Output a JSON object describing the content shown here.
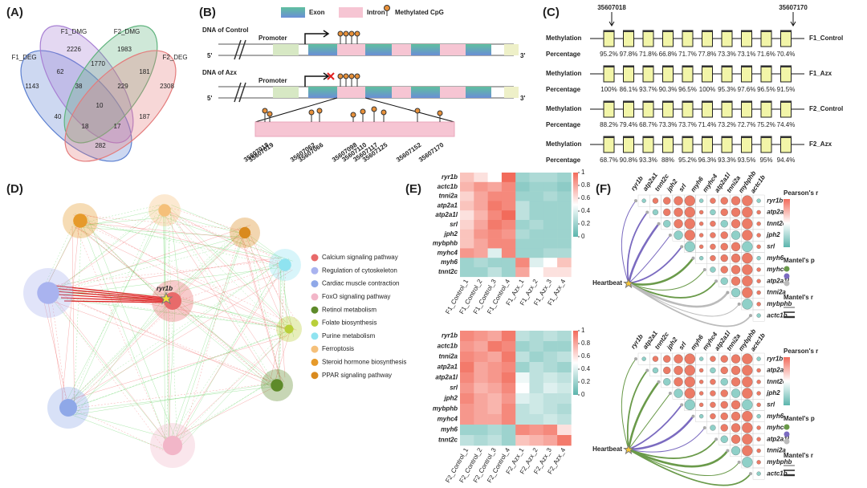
{
  "a": {
    "label": "(A)",
    "sets": [
      {
        "name": "F1_DEG",
        "color": "#5b7fd0"
      },
      {
        "name": "F1_DMG",
        "color": "#a77fd3"
      },
      {
        "name": "F2_DMG",
        "color": "#5fb37d"
      },
      {
        "name": "F2_DEG",
        "color": "#e47c7c"
      }
    ],
    "counts": [
      "2226",
      "1983",
      "1770",
      "1143",
      "62",
      "38",
      "229",
      "181",
      "2308",
      "10",
      "40",
      "18",
      "17",
      "187",
      "282"
    ]
  },
  "b": {
    "label": "(B)",
    "legend": [
      "Exon",
      "Intron",
      "Methylated CpG"
    ],
    "tracks": [
      {
        "title": "DNA of Control",
        "promoter": "Promoter",
        "five": "5'",
        "three": "3'"
      },
      {
        "title": "DNA of Azx",
        "promoter": "Promoter",
        "five": "5'",
        "three": "3'"
      }
    ],
    "positions": [
      "35607018",
      "35607019",
      "35607062",
      "35607066",
      "35607098",
      "35607110",
      "35607117",
      "35607125",
      "35607152",
      "35607170"
    ]
  },
  "c": {
    "label": "(C)",
    "markers": [
      "35607018",
      "35607170"
    ],
    "rows": [
      {
        "name": "F1_Control",
        "methylation": "Methylation",
        "percentage": "Percentage",
        "values": [
          "95.2%",
          "97.8%",
          "71.8%",
          "66.8%",
          "71.7%",
          "77.8%",
          "73.3%",
          "73.1%",
          "71.6%",
          "70.4%"
        ]
      },
      {
        "name": "F1_Azx",
        "methylation": "Methylation",
        "percentage": "Percentage",
        "values": [
          "100%",
          "86.1%",
          "93.7%",
          "90.3%",
          "96.5%",
          "100%",
          "95.3%",
          "97.6%",
          "96.5%",
          "91.5%"
        ]
      },
      {
        "name": "F2_Control",
        "methylation": "Methylation",
        "percentage": "Percentage",
        "values": [
          "88.2%",
          "79.4%",
          "68.7%",
          "73.3%",
          "73.7%",
          "71.4%",
          "73.2%",
          "72.7%",
          "75.2%",
          "74.4%"
        ]
      },
      {
        "name": "F2_Azx",
        "methylation": "Methylation",
        "percentage": "Percentage",
        "values": [
          "68.7%",
          "90.8%",
          "93.3%",
          "88%",
          "95.2%",
          "96.3%",
          "93.3%",
          "93.5%",
          "95%",
          "94.4%"
        ]
      }
    ]
  },
  "d": {
    "label": "(D)",
    "hub": "ryr1b",
    "pathways": [
      {
        "name": "Calcium signaling pathway",
        "color": "#e86a6a"
      },
      {
        "name": "Regulation of cytoskeleton",
        "color": "#a9b3ef"
      },
      {
        "name": "Cardiac muscle contraction",
        "color": "#8fa8e8"
      },
      {
        "name": "FoxO signaling pathway",
        "color": "#f2b6c8"
      },
      {
        "name": "Retinol metabolism",
        "color": "#5e8a2a"
      },
      {
        "name": "Folate biosynthesis",
        "color": "#b9cf3a"
      },
      {
        "name": "Purine metabolism",
        "color": "#8fe3f0"
      },
      {
        "name": "Ferroptosis",
        "color": "#f5c07a"
      },
      {
        "name": "Steroid hormone biosynthesis",
        "color": "#e69a2a"
      },
      {
        "name": "PPAR signaling pathway",
        "color": "#d98a1e"
      }
    ]
  },
  "e": {
    "label": "(E)",
    "colors": [
      "#5cb5ad",
      "#ffffff",
      "#f26b5b"
    ],
    "heatmaps": [
      {
        "rows": [
          "ryr1b",
          "actc1b",
          "tnni2a",
          "atp2a1",
          "atp2a1l",
          "srl",
          "jph2",
          "mybphb",
          "myhc4",
          "myh6",
          "tnnt2c"
        ],
        "columns": [
          "F1_Control_1",
          "F1_Control_2",
          "F1_Control_3",
          "F1_Control_4",
          "F1_Azx_1",
          "F1_Azx_2",
          "F1_Azx_3",
          "F1_Azx_4"
        ],
        "values": [
          [
            0.7,
            0.6,
            0.5,
            1,
            0.2,
            0.25,
            0.25,
            0.2
          ],
          [
            0.75,
            0.85,
            0.8,
            0.9,
            0.15,
            0.2,
            0.2,
            0.15
          ],
          [
            0.65,
            0.8,
            0.9,
            0.9,
            0.2,
            0.2,
            0.25,
            0.2
          ],
          [
            0.7,
            0.8,
            0.95,
            0.9,
            0.3,
            0.2,
            0.2,
            0.2
          ],
          [
            0.6,
            0.75,
            0.9,
            1,
            0.3,
            0.2,
            0.2,
            0.2
          ],
          [
            0.65,
            0.8,
            0.95,
            0.9,
            0.2,
            0.25,
            0.2,
            0.2
          ],
          [
            0.7,
            0.85,
            0.9,
            0.85,
            0.25,
            0.2,
            0.2,
            0.2
          ],
          [
            0.7,
            0.8,
            0.9,
            0.9,
            0.2,
            0.2,
            0.2,
            0.2
          ],
          [
            0.85,
            0.8,
            0.4,
            0.9,
            0.2,
            0.2,
            0.25,
            0.25
          ],
          [
            0.2,
            0.25,
            0.2,
            0.2,
            0.9,
            0.4,
            0.5,
            0.7
          ],
          [
            0.2,
            0.2,
            0.3,
            0.2,
            0.8,
            0.5,
            0.6,
            0.6
          ]
        ],
        "ticks": [
          0,
          0.2,
          0.4,
          0.6,
          0.8,
          1
        ]
      },
      {
        "rows": [
          "ryr1b",
          "actc1b",
          "tnni2a",
          "atp2a1",
          "atp2a1l",
          "srl",
          "jph2",
          "mybphb",
          "myhc4",
          "myh6",
          "tnnt2c"
        ],
        "columns": [
          "F2_Control_1",
          "F2_Control_2",
          "F2_Control_3",
          "F2_Control_4",
          "F2_Azx_1",
          "F2_Azx_2",
          "F2_Azx_3",
          "F2_Azx_4"
        ],
        "values": [
          [
            0.9,
            0.85,
            0.8,
            0.95,
            0.3,
            0.25,
            0.3,
            0.25
          ],
          [
            0.85,
            0.8,
            0.95,
            0.9,
            0.2,
            0.25,
            0.2,
            0.2
          ],
          [
            0.9,
            0.85,
            0.8,
            0.95,
            0.3,
            0.2,
            0.25,
            0.3
          ],
          [
            0.95,
            0.8,
            0.85,
            0.9,
            0.2,
            0.3,
            0.25,
            0.2
          ],
          [
            0.9,
            0.8,
            0.85,
            0.95,
            0.45,
            0.3,
            0.35,
            0.3
          ],
          [
            0.85,
            0.75,
            0.8,
            0.9,
            0.5,
            0.3,
            0.4,
            0.35
          ],
          [
            0.9,
            0.8,
            0.75,
            0.85,
            0.4,
            0.35,
            0.3,
            0.3
          ],
          [
            0.85,
            0.8,
            0.75,
            0.9,
            0.3,
            0.35,
            0.3,
            0.25
          ],
          [
            0.85,
            0.8,
            0.8,
            0.9,
            0.3,
            0.3,
            0.35,
            0.3
          ],
          [
            0.2,
            0.2,
            0.25,
            0.2,
            0.9,
            0.85,
            0.9,
            0.6
          ],
          [
            0.3,
            0.25,
            0.3,
            0.2,
            0.7,
            0.75,
            0.8,
            0.95
          ]
        ],
        "ticks": [
          0,
          0.2,
          0.4,
          0.6,
          0.8,
          1
        ]
      }
    ]
  },
  "f": {
    "label": "(F)",
    "panels": [
      {
        "genes": [
          "ryr1b",
          "atp2a1",
          "tnnt2c",
          "jph2",
          "srl",
          "myh6",
          "myhc4",
          "atp2a1l",
          "tnni2a",
          "mybphb",
          "actc1b"
        ],
        "trait": "Heartbeat",
        "legend": [
          "Pearson's r",
          "Mantel's p",
          "Mantel's r"
        ]
      },
      {
        "genes": [
          "ryr1b",
          "atp2a1",
          "tnnt2c",
          "jph2",
          "srl",
          "myh6",
          "myhc4",
          "atp2a1l",
          "tnni2a",
          "mybphb",
          "actc1b"
        ],
        "trait": "Heartbeat",
        "legend": [
          "Pearson's r",
          "Mantel's p",
          "Mantel's r"
        ]
      }
    ]
  }
}
